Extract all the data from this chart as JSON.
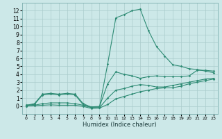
{
  "xlabel": "Humidex (Indice chaleur)",
  "x": [
    0,
    1,
    2,
    3,
    4,
    5,
    6,
    7,
    8,
    9,
    10,
    11,
    12,
    13,
    14,
    15,
    16,
    17,
    18,
    19,
    20,
    21,
    22,
    23
  ],
  "curve_max": [
    0.1,
    0.3,
    1.5,
    1.6,
    1.5,
    1.6,
    1.5,
    0.3,
    -0.15,
    -0.1,
    5.3,
    11.1,
    11.5,
    12.0,
    12.2,
    9.5,
    7.5,
    6.3,
    5.2,
    5.0,
    4.7,
    4.6,
    4.4,
    4.2
  ],
  "curve_upper": [
    0.1,
    0.2,
    1.4,
    1.5,
    1.4,
    1.5,
    1.4,
    0.15,
    -0.1,
    -0.05,
    2.8,
    4.3,
    4.0,
    3.8,
    3.5,
    3.7,
    3.8,
    3.7,
    3.7,
    3.7,
    3.8,
    4.5,
    4.5,
    4.4
  ],
  "curve_lower": [
    0.0,
    0.1,
    0.3,
    0.4,
    0.4,
    0.4,
    0.3,
    0.1,
    -0.2,
    -0.2,
    1.0,
    2.0,
    2.2,
    2.5,
    2.7,
    2.6,
    2.4,
    2.4,
    2.6,
    2.8,
    3.0,
    3.2,
    3.4,
    3.5
  ],
  "curve_min": [
    0.0,
    0.05,
    0.1,
    0.15,
    0.1,
    0.1,
    0.1,
    -0.05,
    -0.3,
    -0.25,
    0.2,
    0.9,
    1.2,
    1.5,
    1.8,
    2.0,
    2.2,
    2.3,
    2.3,
    2.5,
    2.8,
    3.0,
    3.2,
    3.4
  ],
  "line_color": "#2e8b74",
  "bg_color": "#cce8e8",
  "grid_color": "#aacccc",
  "xlim": [
    -0.5,
    23.5
  ],
  "ylim": [
    -1,
    13
  ],
  "yticks": [
    0,
    1,
    2,
    3,
    4,
    5,
    6,
    7,
    8,
    9,
    10,
    11,
    12
  ],
  "xticks": [
    0,
    1,
    2,
    3,
    4,
    5,
    6,
    7,
    8,
    9,
    10,
    11,
    12,
    13,
    14,
    15,
    16,
    17,
    18,
    19,
    20,
    21,
    22,
    23
  ],
  "xlabel_fontsize": 6,
  "tick_fontsize_x": 4.5,
  "tick_fontsize_y": 5.5,
  "marker": "D",
  "markersize": 1.8,
  "linewidth": 0.8
}
